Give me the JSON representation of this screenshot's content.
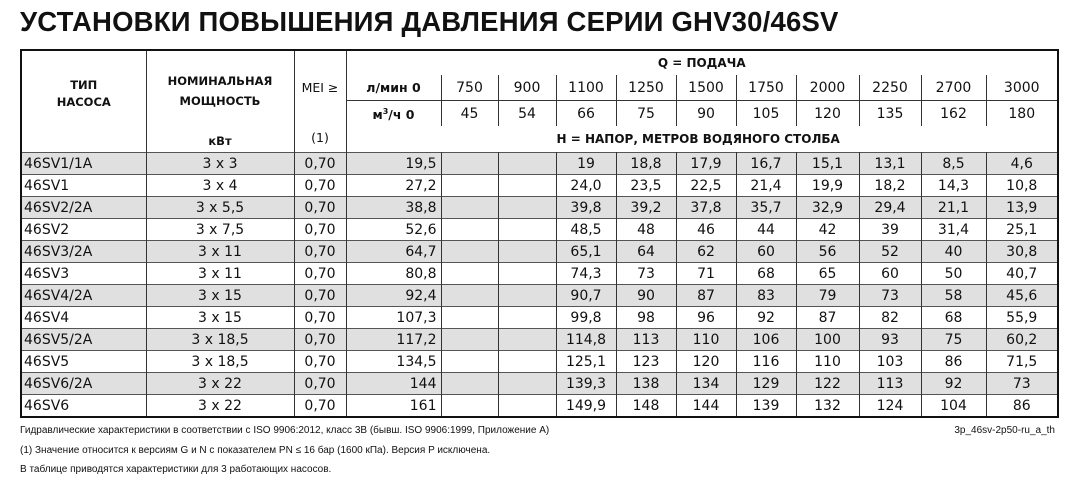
{
  "title": "УСТАНОВКИ ПОВЫШЕНИЯ ДАВЛЕНИЯ СЕРИИ GHV30/46SV",
  "header": {
    "type_label_1": "ТИП",
    "type_label_2": "НАСОСА",
    "power_label_1": "НОМИНАЛЬНАЯ",
    "power_label_2": "МОЩНОСТЬ",
    "power_unit": "кВт",
    "mei_label": "MEI ≥",
    "mei_note": "(1)",
    "q_label": "Q = ПОДАЧА",
    "lmin_label": "л/мин 0",
    "m3h_label": "м",
    "m3h_sup": "3",
    "m3h_rest": "/ч 0",
    "flow_lmin": [
      "750",
      "900",
      "1100",
      "1250",
      "1500",
      "1750",
      "2000",
      "2250",
      "2700",
      "3000"
    ],
    "flow_m3h": [
      "45",
      "54",
      "66",
      "75",
      "90",
      "105",
      "120",
      "135",
      "162",
      "180"
    ],
    "h_label": "H = НАПОР, МЕТРОВ ВОДЯНОГО СТОЛБА"
  },
  "rows": [
    {
      "type": "46SV1/1A",
      "power": "3 x 3",
      "mei": "0,70",
      "h": [
        "19,5",
        "",
        "",
        "19",
        "18,8",
        "17,9",
        "16,7",
        "15,1",
        "13,1",
        "8,5",
        "4,6"
      ]
    },
    {
      "type": "46SV1",
      "power": "3 x 4",
      "mei": "0,70",
      "h": [
        "27,2",
        "",
        "",
        "24,0",
        "23,5",
        "22,5",
        "21,4",
        "19,9",
        "18,2",
        "14,3",
        "10,8"
      ]
    },
    {
      "type": "46SV2/2A",
      "power": "3 x 5,5",
      "mei": "0,70",
      "h": [
        "38,8",
        "",
        "",
        "39,8",
        "39,2",
        "37,8",
        "35,7",
        "32,9",
        "29,4",
        "21,1",
        "13,9"
      ]
    },
    {
      "type": "46SV2",
      "power": "3 x 7,5",
      "mei": "0,70",
      "h": [
        "52,6",
        "",
        "",
        "48,5",
        "48",
        "46",
        "44",
        "42",
        "39",
        "31,4",
        "25,1"
      ]
    },
    {
      "type": "46SV3/2A",
      "power": "3 x 11",
      "mei": "0,70",
      "h": [
        "64,7",
        "",
        "",
        "65,1",
        "64",
        "62",
        "60",
        "56",
        "52",
        "40",
        "30,8"
      ]
    },
    {
      "type": "46SV3",
      "power": "3 x 11",
      "mei": "0,70",
      "h": [
        "80,8",
        "",
        "",
        "74,3",
        "73",
        "71",
        "68",
        "65",
        "60",
        "50",
        "40,7"
      ]
    },
    {
      "type": "46SV4/2A",
      "power": "3 x 15",
      "mei": "0,70",
      "h": [
        "92,4",
        "",
        "",
        "90,7",
        "90",
        "87",
        "83",
        "79",
        "73",
        "58",
        "45,6"
      ]
    },
    {
      "type": "46SV4",
      "power": "3 x 15",
      "mei": "0,70",
      "h": [
        "107,3",
        "",
        "",
        "99,8",
        "98",
        "96",
        "92",
        "87",
        "82",
        "68",
        "55,9"
      ]
    },
    {
      "type": "46SV5/2A",
      "power": "3 x 18,5",
      "mei": "0,70",
      "h": [
        "117,2",
        "",
        "",
        "114,8",
        "113",
        "110",
        "106",
        "100",
        "93",
        "75",
        "60,2"
      ]
    },
    {
      "type": "46SV5",
      "power": "3 x 18,5",
      "mei": "0,70",
      "h": [
        "134,5",
        "",
        "",
        "125,1",
        "123",
        "120",
        "116",
        "110",
        "103",
        "86",
        "71,5"
      ]
    },
    {
      "type": "46SV6/2A",
      "power": "3 x 22",
      "mei": "0,70",
      "h": [
        "144",
        "",
        "",
        "139,3",
        "138",
        "134",
        "129",
        "122",
        "113",
        "92",
        "73"
      ]
    },
    {
      "type": "46SV6",
      "power": "3 x 22",
      "mei": "0,70",
      "h": [
        "161",
        "",
        "",
        "149,9",
        "148",
        "144",
        "139",
        "132",
        "124",
        "104",
        "86"
      ]
    }
  ],
  "footer": {
    "note1": "Гидравлические характеристики в соответствии с ISO 9906:2012, класс 3B (бывш. ISO 9906:1999, Приложение A)",
    "code": "3p_46sv-2p50-ru_a_th",
    "note2": "(1) Значение относится к версиям G и N с показателем PN ≤ 16 бар (1600 кПа). Версия P исключена.",
    "note3": "В таблице приводятся характеристики для 3 работающих насосов."
  }
}
